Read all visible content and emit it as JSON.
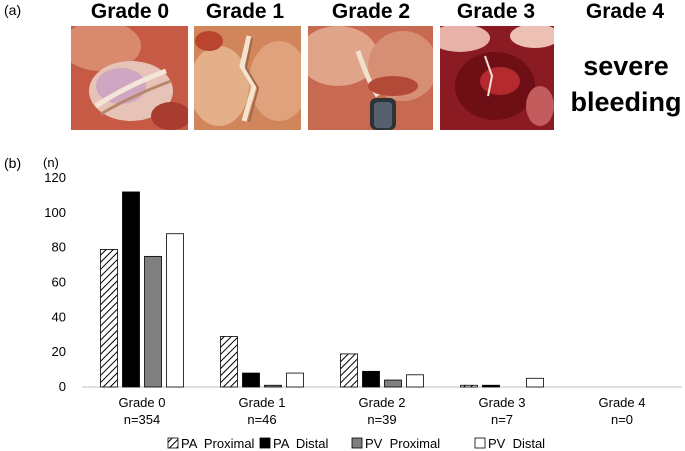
{
  "panel_a": {
    "label": "(a)",
    "grades": [
      "Grade 0",
      "Grade 1",
      "Grade 2",
      "Grade 3",
      "Grade 4"
    ],
    "grade4_text": [
      "severe",
      "bleeding"
    ]
  },
  "panel_b": {
    "label": "(b)"
  },
  "chart_data": {
    "type": "bar",
    "unit_label": "(n)",
    "ylim": [
      0,
      120
    ],
    "yticks": [
      0,
      20,
      40,
      60,
      80,
      100,
      120
    ],
    "categories": [
      "Grade 0",
      "Grade 1",
      "Grade 2",
      "Grade 3",
      "Grade 4"
    ],
    "category_counts": [
      "n=354",
      "n=46",
      "n=39",
      "n=7",
      "n=0"
    ],
    "series": [
      {
        "name": "PA  Proximal",
        "style": "hatched",
        "values": [
          79,
          29,
          19,
          1,
          0
        ]
      },
      {
        "name": "PA  Distal",
        "style": "black",
        "values": [
          112,
          8,
          9,
          1,
          0
        ]
      },
      {
        "name": "PV  Proximal",
        "style": "gray",
        "values": [
          75,
          1,
          4,
          0,
          0
        ]
      },
      {
        "name": "PV  Distal",
        "style": "white",
        "values": [
          88,
          8,
          7,
          5,
          0
        ]
      }
    ],
    "grid": false,
    "legend_position": "bottom"
  }
}
